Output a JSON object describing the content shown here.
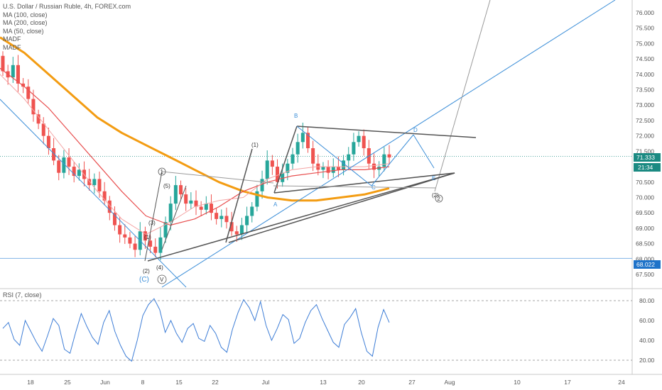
{
  "legend": {
    "title": "U.S. Dollar / Russian Ruble, 4h, FOREX.com",
    "lines": [
      "MA (100, close)",
      "MA (200, close)",
      "MA (50, close)",
      "MADF",
      "MADF"
    ]
  },
  "rsi_label": "RSI (7, close)",
  "colors": {
    "up": "#26a69a",
    "down": "#ef5350",
    "ma_slow": "#f39c12",
    "ma_mid": "#e84e4e",
    "ma_fast": "#f4a3a3",
    "blue_line": "#3d8fd8",
    "gray_line": "#555555",
    "price_tag": "#1b8a82",
    "rsi": "#3d7dd6"
  },
  "chart_data": [
    {
      "type": "candlestick",
      "title": "U.S. Dollar / Russian Ruble, 4h, FOREX.com",
      "x_tick_labels": [
        "18",
        "25",
        "Jun",
        "8",
        "15",
        "22",
        "Jul",
        "13",
        "20",
        "27",
        "Aug",
        "10",
        "17",
        "24"
      ],
      "y_tick_labels": [
        "76.000",
        "75.500",
        "75.000",
        "74.500",
        "74.000",
        "73.500",
        "73.000",
        "72.500",
        "72.000",
        "71.500",
        "71.000",
        "70.500",
        "70.000",
        "69.500",
        "69.000",
        "68.500",
        "68.000",
        "67.500"
      ],
      "ylim": [
        67.2,
        76.3
      ],
      "last_price": "71.333",
      "countdown": "21:34",
      "level_line": "68.022",
      "close_series": [
        74.1,
        73.9,
        74.3,
        73.7,
        73.6,
        73.2,
        72.7,
        72.4,
        72.0,
        71.6,
        71.2,
        70.8,
        71.3,
        71.0,
        70.7,
        70.9,
        70.6,
        70.4,
        70.6,
        70.2,
        69.9,
        69.5,
        69.1,
        68.8,
        68.7,
        68.5,
        68.3,
        68.9,
        68.6,
        68.4,
        68.2,
        68.7,
        69.2,
        69.8,
        70.4,
        70.1,
        69.8,
        69.9,
        69.7,
        69.6,
        69.8,
        69.5,
        69.3,
        69.4,
        69.2,
        68.9,
        68.8,
        69.1,
        69.4,
        69.7,
        70.2,
        70.6,
        71.2,
        71.0,
        70.5,
        70.8,
        71.1,
        71.4,
        71.8,
        72.1,
        71.6,
        71.1,
        70.9,
        71.0,
        70.8,
        71.0,
        70.9,
        71.2,
        71.4,
        71.8,
        72.0,
        71.6,
        71.1,
        70.9,
        71.0,
        71.4,
        71.3
      ],
      "moving_averages": [
        {
          "name": "MA (200, close)",
          "values": [
            75.2,
            74.7,
            74.0,
            73.3,
            72.6,
            72.1,
            71.7,
            71.3,
            70.9,
            70.5,
            70.2,
            70.0,
            69.9,
            69.9,
            70.0,
            70.1,
            70.3
          ]
        },
        {
          "name": "MA (100, close)",
          "values": [
            74.2,
            73.6,
            72.9,
            72.0,
            71.1,
            70.2,
            69.4,
            69.1,
            69.3,
            69.7,
            70.2,
            70.5,
            70.7,
            70.8,
            70.9,
            70.9,
            71.0
          ]
        },
        {
          "name": "MA (50, close)",
          "values": [
            74.0,
            73.2,
            72.2,
            71.2,
            70.2,
            69.3,
            68.8,
            69.2,
            69.7,
            69.9,
            70.0,
            70.6,
            70.9,
            71.0,
            71.0,
            71.0,
            71.1
          ]
        }
      ],
      "annotations": [
        "(1)",
        "(2)",
        "(3)",
        "(4)",
        "(5)",
        "(1)",
        "(2)",
        "A",
        "B",
        "C",
        "D",
        "E",
        "(C)",
        "1",
        "2",
        "V"
      ]
    },
    {
      "type": "line",
      "title": "RSI (7, close)",
      "y_tick_labels": [
        "80.00",
        "60.00",
        "40.00",
        "20.00"
      ],
      "ylim": [
        10,
        90
      ],
      "values": [
        52,
        58,
        41,
        35,
        60,
        49,
        38,
        29,
        45,
        62,
        55,
        31,
        27,
        48,
        67,
        54,
        43,
        36,
        58,
        70,
        49,
        35,
        24,
        19,
        40,
        65,
        76,
        82,
        71,
        48,
        60,
        47,
        38,
        52,
        57,
        42,
        39,
        55,
        47,
        33,
        28,
        51,
        68,
        81,
        73,
        60,
        79,
        55,
        40,
        52,
        66,
        61,
        37,
        42,
        58,
        70,
        76,
        62,
        50,
        38,
        33,
        56,
        63,
        72,
        48,
        29,
        24,
        53,
        71,
        58
      ]
    }
  ],
  "wave_labels": {
    "w1": "(1)",
    "w2": "(2)",
    "w3": "(3)",
    "w4": "(4)",
    "w5": "(5)",
    "w1b": "(1)",
    "w2b": "(2)",
    "a": "A",
    "b": "B",
    "c": "C",
    "d": "D",
    "e": "E",
    "c_big": "(C)",
    "one": "1",
    "two": "2",
    "v": "V"
  }
}
